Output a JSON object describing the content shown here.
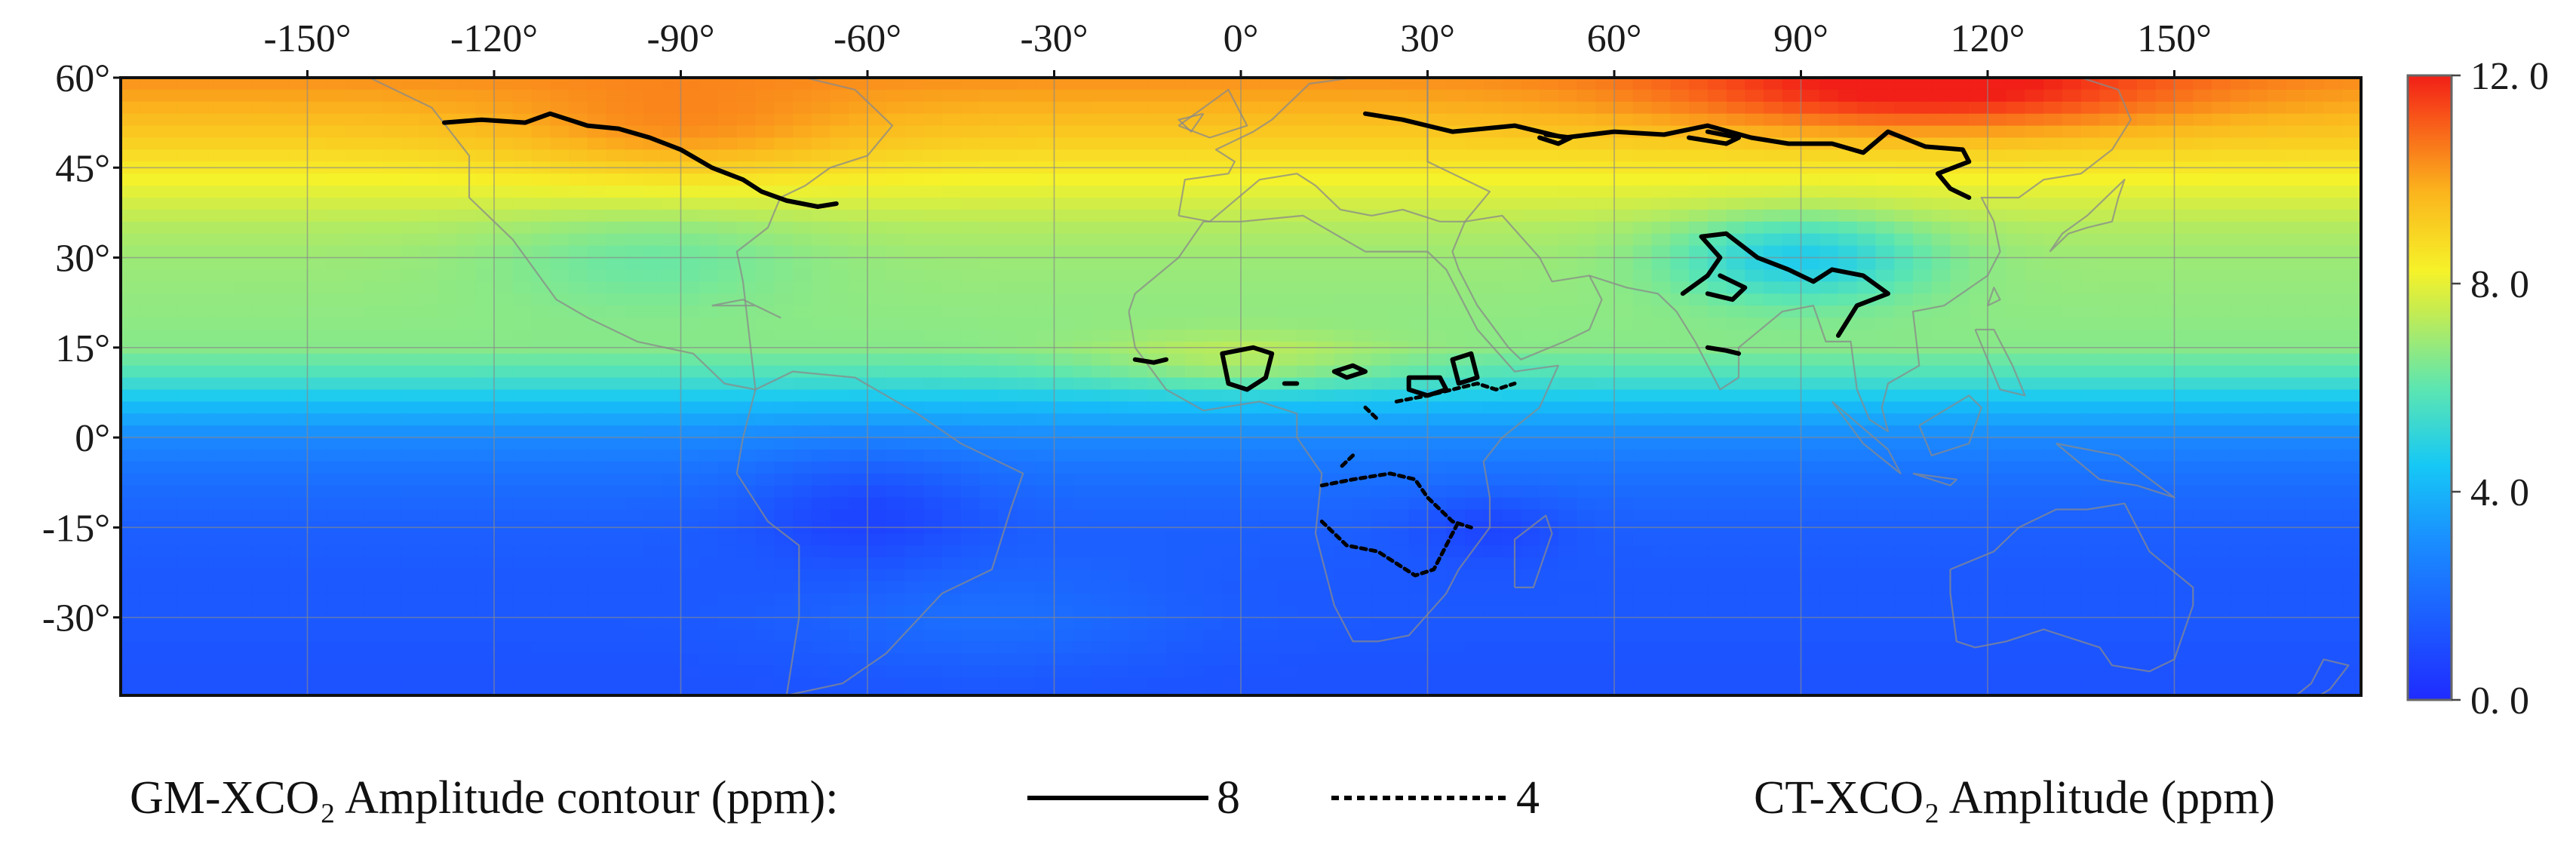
{
  "chart_data": {
    "type": "heatmap",
    "x_ticks": [
      "-150°",
      "-120°",
      "-90°",
      "-60°",
      "-30°",
      "0°",
      "30°",
      "60°",
      "90°",
      "120°",
      "150°"
    ],
    "x_tick_values": [
      -150,
      -120,
      -90,
      -60,
      -30,
      0,
      30,
      60,
      90,
      120,
      150
    ],
    "y_ticks": [
      "60°",
      "45°",
      "30°",
      "15°",
      "0°",
      "-15°",
      "-30°"
    ],
    "y_tick_values": [
      60,
      45,
      30,
      15,
      0,
      -15,
      -30
    ],
    "lon_range": [
      -180,
      180
    ],
    "lat_range": [
      -43,
      60
    ],
    "grid": true,
    "colorbar": {
      "ticks": [
        "12. 0",
        "8. 0",
        "4. 0",
        "0. 0"
      ],
      "tick_values": [
        12,
        8,
        4,
        0
      ],
      "range": [
        0,
        12
      ],
      "colormap": "jet",
      "position": "right"
    },
    "field_profile": {
      "note_units": "ppm",
      "latitude": [
        60,
        55,
        50,
        45,
        40,
        35,
        30,
        25,
        20,
        15,
        10,
        5,
        0,
        -5,
        -10,
        -15,
        -20,
        -25,
        -30,
        -35,
        -40,
        -43
      ],
      "amplitude": [
        10.3,
        9.8,
        9.2,
        8.5,
        7.8,
        7.2,
        6.9,
        6.8,
        6.7,
        6.6,
        5.6,
        4.1,
        2.9,
        2.3,
        1.9,
        1.6,
        1.5,
        1.4,
        1.4,
        1.3,
        1.2,
        1.2
      ]
    },
    "contours": [
      {
        "level": 8,
        "style": "solid",
        "paths": [
          [
            [
              -128,
              52.5
            ],
            [
              -122,
              53
            ],
            [
              -115,
              52.5
            ],
            [
              -111,
              54
            ],
            [
              -105,
              52
            ],
            [
              -100,
              51.5
            ],
            [
              -95,
              50
            ],
            [
              -90,
              48
            ],
            [
              -85,
              45
            ],
            [
              -80,
              43
            ],
            [
              -77,
              41
            ],
            [
              -73,
              39.5
            ],
            [
              -68,
              38.5
            ],
            [
              -65,
              39
            ]
          ],
          [
            [
              20,
              54
            ],
            [
              26,
              53
            ],
            [
              34,
              51
            ],
            [
              44,
              52
            ],
            [
              52,
              50
            ],
            [
              60,
              51
            ],
            [
              68,
              50.5
            ],
            [
              75,
              52
            ],
            [
              82,
              50
            ],
            [
              88,
              49
            ],
            [
              95,
              49
            ],
            [
              100,
              47.5
            ],
            [
              104,
              51
            ],
            [
              110,
              48.5
            ],
            [
              116,
              48
            ],
            [
              117,
              46
            ],
            [
              112,
              44
            ],
            [
              114,
              41.5
            ],
            [
              117,
              40
            ]
          ],
          [
            [
              48,
              50
            ],
            [
              51,
              49
            ],
            [
              53,
              50
            ],
            [
              49,
              50.5
            ]
          ],
          [
            [
              72,
              50
            ],
            [
              78,
              49
            ],
            [
              80,
              50
            ],
            [
              75,
              51
            ]
          ],
          [
            [
              71,
              24
            ],
            [
              75,
              27
            ],
            [
              77,
              30
            ],
            [
              74,
              33.5
            ],
            [
              78,
              34
            ],
            [
              83,
              30
            ],
            [
              88,
              28
            ],
            [
              92,
              26
            ],
            [
              95,
              28
            ],
            [
              100,
              27
            ],
            [
              104,
              24
            ],
            [
              99,
              22
            ],
            [
              96,
              17
            ]
          ],
          [
            [
              75,
              24
            ],
            [
              79,
              23
            ],
            [
              81,
              25
            ],
            [
              77,
              27
            ]
          ],
          [
            [
              75,
              15
            ],
            [
              78,
              14.5
            ],
            [
              80,
              14
            ]
          ]
        ]
      },
      {
        "level": 8,
        "style": "solid",
        "paths": [
          [
            [
              -17,
              13
            ],
            [
              -14,
              12.5
            ],
            [
              -12,
              13
            ]
          ],
          [
            [
              -3,
              14
            ],
            [
              2,
              15
            ],
            [
              5,
              14
            ],
            [
              4,
              10
            ],
            [
              1,
              8
            ],
            [
              -2,
              9
            ],
            [
              -3,
              14
            ]
          ],
          [
            [
              7,
              9
            ],
            [
              9,
              9
            ]
          ],
          [
            [
              15,
              11
            ],
            [
              18,
              12
            ],
            [
              20,
              11
            ],
            [
              17,
              10
            ],
            [
              15,
              11
            ]
          ],
          [
            [
              27,
              10
            ],
            [
              32,
              10
            ],
            [
              33,
              8
            ],
            [
              30,
              7
            ],
            [
              27,
              8
            ],
            [
              27,
              10
            ]
          ],
          [
            [
              34,
              13
            ],
            [
              37,
              14
            ],
            [
              38,
              10
            ],
            [
              35,
              9
            ],
            [
              34,
              13
            ]
          ]
        ]
      },
      {
        "level": 4,
        "style": "dashed",
        "paths": [
          [
            [
              25,
              6
            ],
            [
              30,
              7
            ],
            [
              34,
              8
            ],
            [
              38,
              9
            ],
            [
              41,
              8
            ],
            [
              44,
              9
            ]
          ],
          [
            [
              20,
              5
            ],
            [
              22,
              3
            ]
          ],
          [
            [
              18,
              -3
            ],
            [
              16,
              -5
            ]
          ],
          [
            [
              13,
              -8
            ],
            [
              18,
              -7
            ],
            [
              24,
              -6
            ],
            [
              28,
              -7
            ],
            [
              30,
              -10
            ],
            [
              34,
              -14
            ],
            [
              37,
              -15
            ]
          ],
          [
            [
              13,
              -14
            ],
            [
              17,
              -18
            ],
            [
              22,
              -19
            ],
            [
              25,
              -21
            ],
            [
              28,
              -23
            ],
            [
              31,
              -22
            ],
            [
              33,
              -18
            ],
            [
              35,
              -14
            ]
          ]
        ]
      }
    ]
  },
  "legend": {
    "contour_label": "GM-XCO₂ Amplitude contour (ppm):",
    "solid_value": "8",
    "dashed_value": "4",
    "colorbar_label": "CT-XCO₂ Amplitude (ppm)"
  }
}
